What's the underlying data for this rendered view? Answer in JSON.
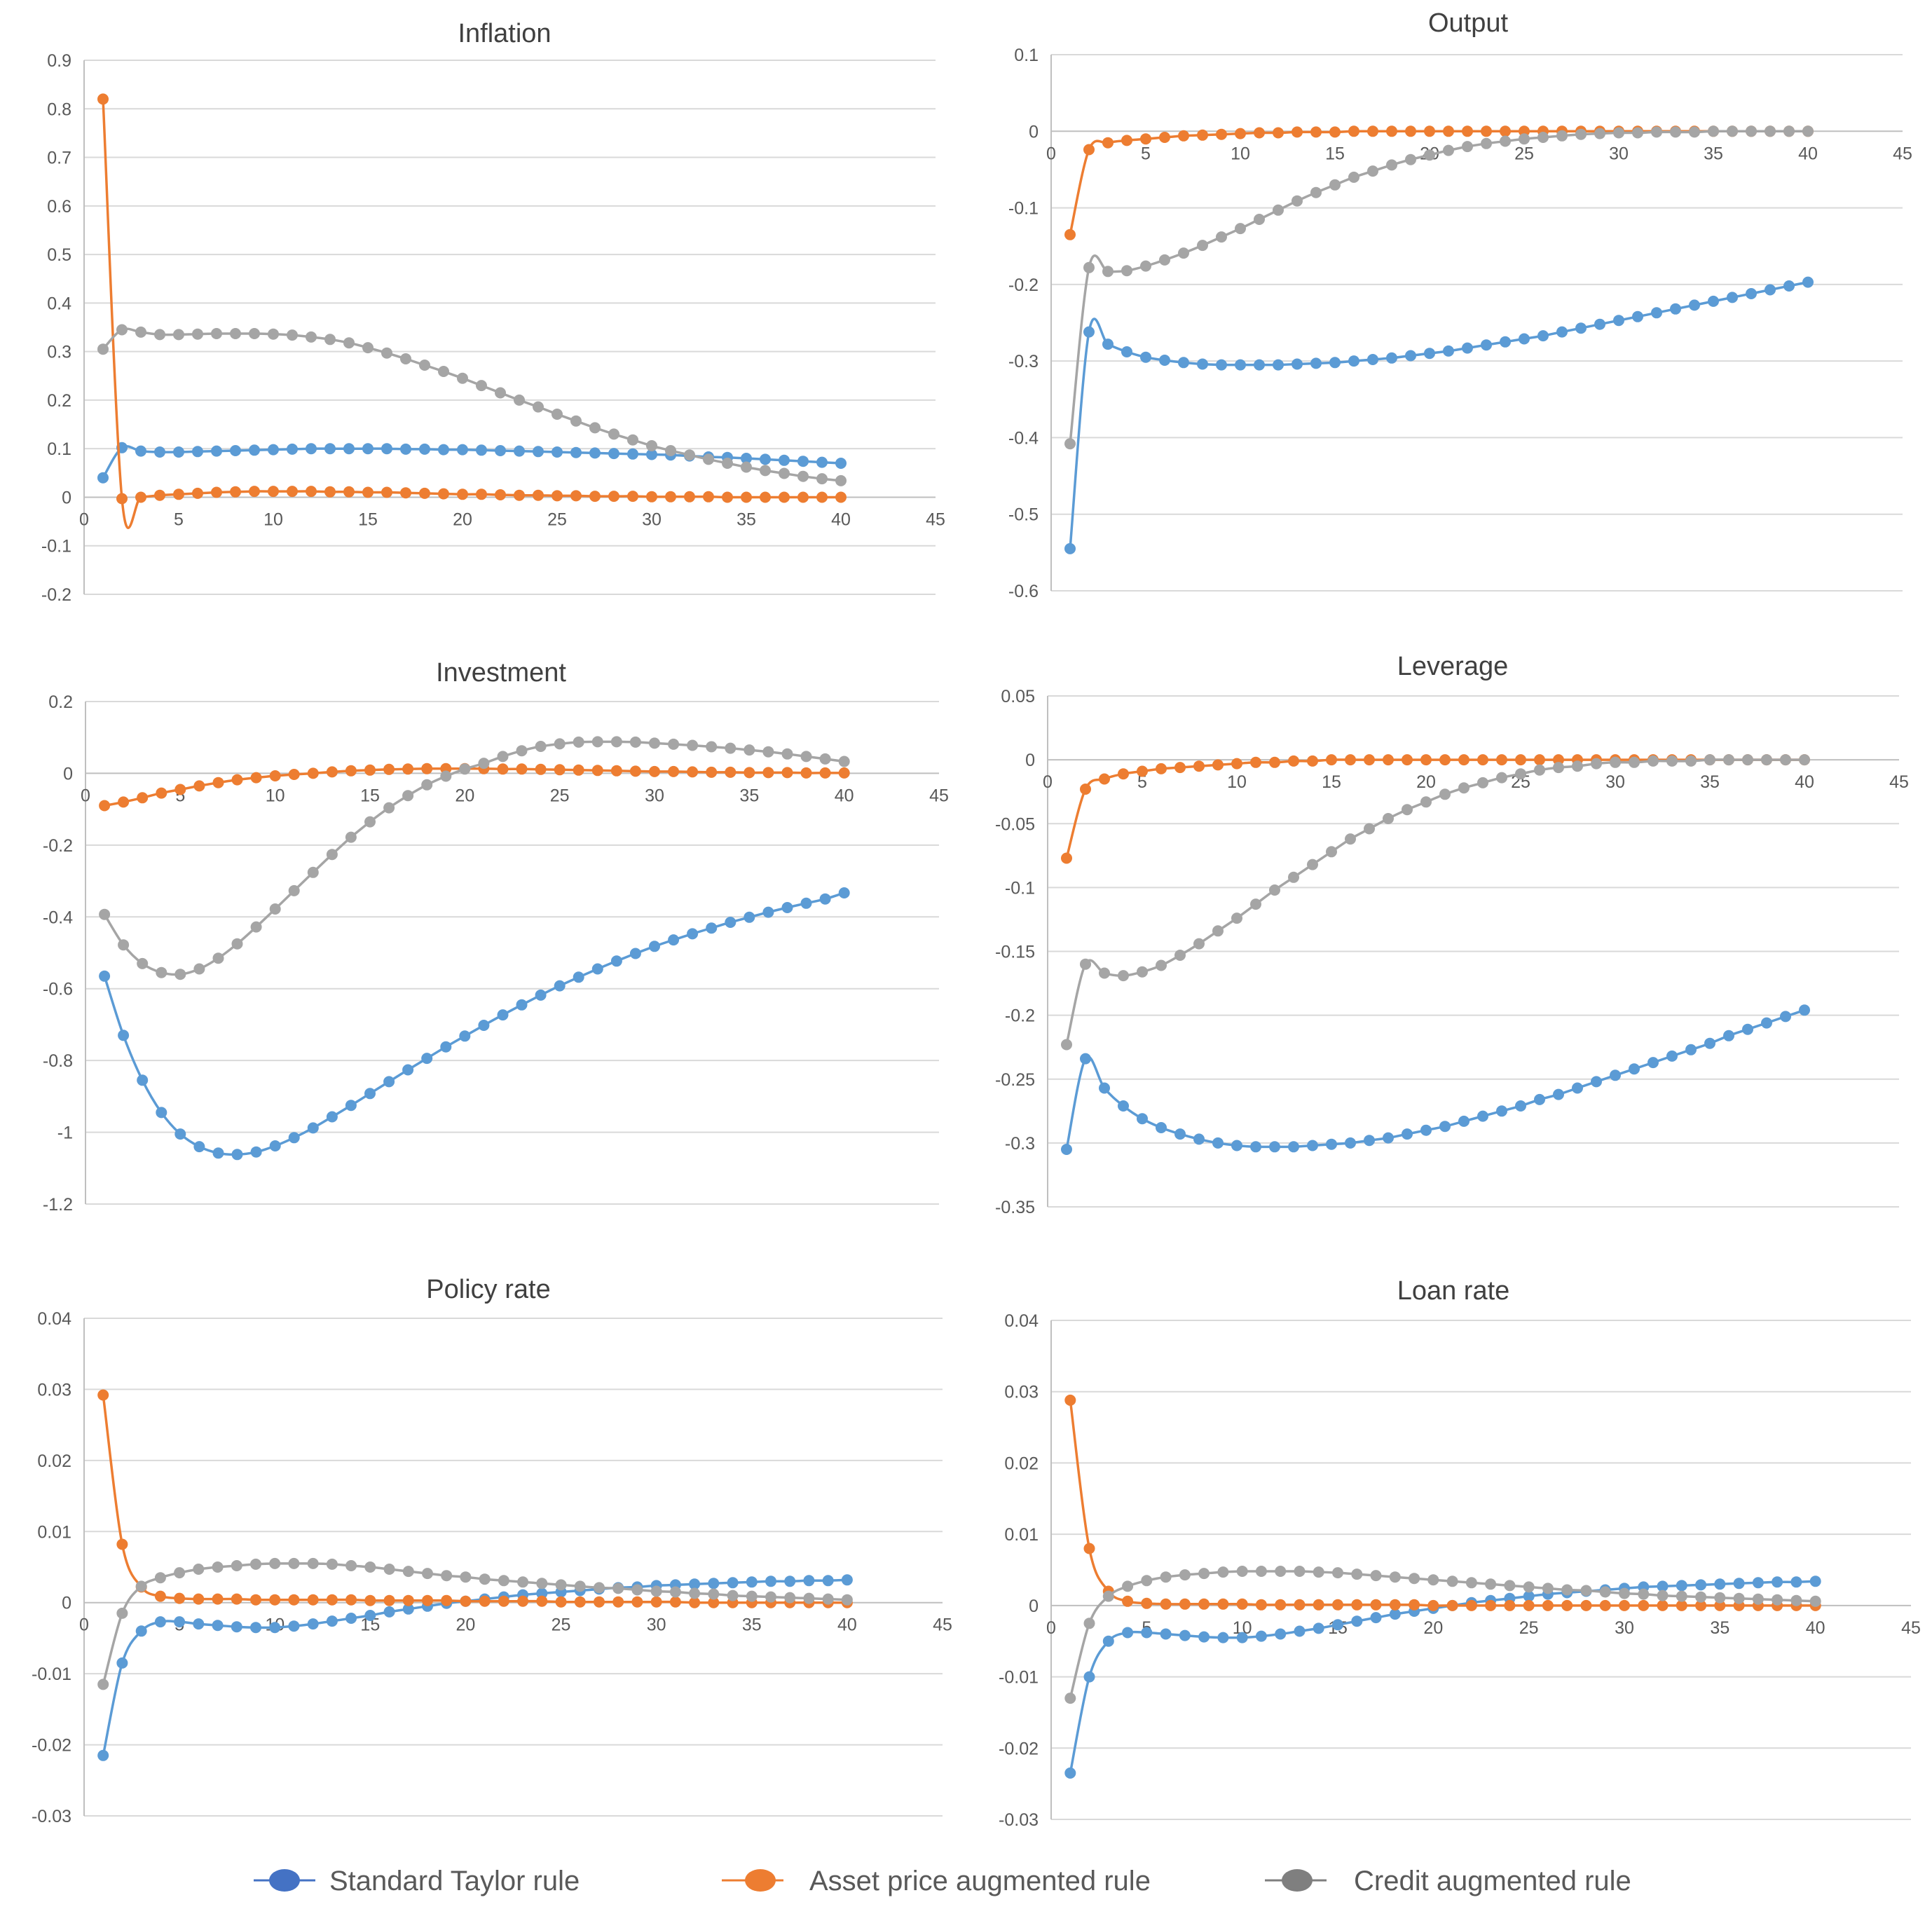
{
  "series_meta": [
    {
      "key": "taylor",
      "name": "Standard Taylor rule",
      "color": "#5b9bd5",
      "legend_color": "#4472c4"
    },
    {
      "key": "asset",
      "name": "Asset price augmented rule",
      "color": "#ed7d31",
      "legend_color": "#ed7d31"
    },
    {
      "key": "credit",
      "name": "Credit augmented rule",
      "color": "#a5a5a5",
      "legend_color": "#7f7f7f"
    }
  ],
  "chart_data": [
    {
      "type": "line",
      "title": "Inflation",
      "xlim": [
        0,
        45
      ],
      "xticks": [
        0,
        5,
        10,
        15,
        20,
        25,
        30,
        35,
        40,
        45
      ],
      "ylim": [
        -0.2,
        0.9
      ],
      "yticks": [
        -0.2,
        -0.1,
        0,
        0.1,
        0.2,
        0.3,
        0.4,
        0.5,
        0.6,
        0.7,
        0.8,
        0.9
      ],
      "ytick_labels": [
        "-0.2",
        "-0.1",
        "0",
        "0.1",
        "0.2",
        "0.3",
        "0.4",
        "0.5",
        "0.6",
        "0.7",
        "0.8",
        "0.9"
      ],
      "series": [
        {
          "name": "Standard Taylor rule",
          "values": [
            0.04,
            0.102,
            0.095,
            0.093,
            0.093,
            0.094,
            0.095,
            0.096,
            0.097,
            0.098,
            0.099,
            0.1,
            0.1,
            0.1,
            0.1,
            0.1,
            0.099,
            0.099,
            0.098,
            0.098,
            0.097,
            0.096,
            0.095,
            0.094,
            0.093,
            0.092,
            0.091,
            0.09,
            0.089,
            0.088,
            0.087,
            0.085,
            0.083,
            0.082,
            0.08,
            0.078,
            0.076,
            0.074,
            0.072,
            0.07
          ]
        },
        {
          "name": "Asset price augmented rule",
          "values": [
            0.82,
            -0.003,
            0.0,
            0.004,
            0.006,
            0.008,
            0.01,
            0.011,
            0.012,
            0.012,
            0.012,
            0.012,
            0.011,
            0.011,
            0.01,
            0.01,
            0.009,
            0.008,
            0.007,
            0.006,
            0.006,
            0.005,
            0.004,
            0.004,
            0.003,
            0.003,
            0.002,
            0.002,
            0.002,
            0.001,
            0.001,
            0.001,
            0.001,
            0.0,
            0.0,
            0.0,
            0.0,
            0.0,
            0.0,
            0.0
          ]
        },
        {
          "name": "Credit augmented rule",
          "values": [
            0.305,
            0.345,
            0.34,
            0.335,
            0.335,
            0.336,
            0.337,
            0.337,
            0.337,
            0.336,
            0.334,
            0.33,
            0.325,
            0.318,
            0.308,
            0.297,
            0.285,
            0.272,
            0.259,
            0.245,
            0.23,
            0.215,
            0.2,
            0.186,
            0.171,
            0.157,
            0.143,
            0.13,
            0.118,
            0.106,
            0.096,
            0.087,
            0.078,
            0.07,
            0.062,
            0.055,
            0.049,
            0.043,
            0.038,
            0.034
          ]
        }
      ]
    },
    {
      "type": "line",
      "title": "Output",
      "xlim": [
        0,
        45
      ],
      "xticks": [
        0,
        5,
        10,
        15,
        20,
        25,
        30,
        35,
        40,
        45
      ],
      "ylim": [
        -0.6,
        0.1
      ],
      "yticks": [
        -0.6,
        -0.5,
        -0.4,
        -0.3,
        -0.2,
        -0.1,
        0,
        0.1
      ],
      "ytick_labels": [
        "-0.6",
        "-0.5",
        "-0.4",
        "-0.3",
        "-0.2",
        "-0.1",
        "0",
        "0.1"
      ],
      "series": [
        {
          "name": "Standard Taylor rule",
          "values": [
            -0.545,
            -0.262,
            -0.278,
            -0.288,
            -0.295,
            -0.299,
            -0.302,
            -0.304,
            -0.305,
            -0.305,
            -0.305,
            -0.305,
            -0.304,
            -0.303,
            -0.302,
            -0.3,
            -0.298,
            -0.296,
            -0.293,
            -0.29,
            -0.287,
            -0.283,
            -0.279,
            -0.275,
            -0.271,
            -0.267,
            -0.262,
            -0.257,
            -0.252,
            -0.247,
            -0.242,
            -0.237,
            -0.232,
            -0.227,
            -0.222,
            -0.217,
            -0.212,
            -0.207,
            -0.202,
            -0.197
          ]
        },
        {
          "name": "Asset price augmented rule",
          "values": [
            -0.135,
            -0.024,
            -0.015,
            -0.012,
            -0.01,
            -0.008,
            -0.006,
            -0.005,
            -0.004,
            -0.003,
            -0.002,
            -0.002,
            -0.001,
            -0.001,
            -0.001,
            0.0,
            0.0,
            0.0,
            0.0,
            0.0,
            0.0,
            0.0,
            0.0,
            0.0,
            0.0,
            0.0,
            0.0,
            0.0,
            0.0,
            0.0,
            0.0,
            0.0,
            0.0,
            0.0,
            0.0,
            0.0,
            0.0,
            0.0,
            0.0,
            0.0
          ]
        },
        {
          "name": "Credit augmented rule",
          "values": [
            -0.408,
            -0.178,
            -0.183,
            -0.182,
            -0.176,
            -0.168,
            -0.159,
            -0.149,
            -0.138,
            -0.127,
            -0.115,
            -0.103,
            -0.091,
            -0.08,
            -0.07,
            -0.06,
            -0.052,
            -0.044,
            -0.037,
            -0.031,
            -0.025,
            -0.02,
            -0.016,
            -0.013,
            -0.01,
            -0.008,
            -0.006,
            -0.004,
            -0.003,
            -0.002,
            -0.002,
            -0.001,
            -0.001,
            -0.001,
            0.0,
            0.0,
            0.0,
            0.0,
            0.0,
            0.0
          ]
        }
      ]
    },
    {
      "type": "line",
      "title": "Investment",
      "xlim": [
        0,
        45
      ],
      "xticks": [
        0,
        5,
        10,
        15,
        20,
        25,
        30,
        35,
        40,
        45
      ],
      "ylim": [
        -1.2,
        0.2
      ],
      "yticks": [
        -1.2,
        -1,
        -0.8,
        -0.6,
        -0.4,
        -0.2,
        0,
        0.2
      ],
      "ytick_labels": [
        "-1.2",
        "-1",
        "-0.8",
        "-0.6",
        "-0.4",
        "-0.2",
        "0",
        "0.2"
      ],
      "series": [
        {
          "name": "Standard Taylor rule",
          "values": [
            -0.565,
            -0.73,
            -0.855,
            -0.945,
            -1.005,
            -1.04,
            -1.058,
            -1.062,
            -1.055,
            -1.038,
            -1.015,
            -0.988,
            -0.957,
            -0.925,
            -0.892,
            -0.859,
            -0.826,
            -0.794,
            -0.762,
            -0.732,
            -0.702,
            -0.673,
            -0.645,
            -0.618,
            -0.592,
            -0.568,
            -0.545,
            -0.523,
            -0.502,
            -0.482,
            -0.464,
            -0.447,
            -0.431,
            -0.415,
            -0.401,
            -0.387,
            -0.374,
            -0.362,
            -0.35,
            -0.333
          ]
        },
        {
          "name": "Asset price augmented rule",
          "values": [
            -0.09,
            -0.08,
            -0.068,
            -0.055,
            -0.045,
            -0.035,
            -0.026,
            -0.018,
            -0.012,
            -0.007,
            -0.003,
            0.0,
            0.004,
            0.007,
            0.009,
            0.011,
            0.012,
            0.013,
            0.013,
            0.013,
            0.013,
            0.012,
            0.012,
            0.011,
            0.01,
            0.009,
            0.008,
            0.007,
            0.006,
            0.005,
            0.005,
            0.004,
            0.003,
            0.003,
            0.002,
            0.002,
            0.002,
            0.001,
            0.001,
            0.001
          ]
        },
        {
          "name": "Credit augmented rule",
          "values": [
            -0.393,
            -0.478,
            -0.53,
            -0.555,
            -0.56,
            -0.545,
            -0.515,
            -0.475,
            -0.428,
            -0.378,
            -0.327,
            -0.276,
            -0.226,
            -0.178,
            -0.135,
            -0.096,
            -0.062,
            -0.032,
            -0.008,
            0.012,
            0.028,
            0.047,
            0.063,
            0.075,
            0.082,
            0.087,
            0.088,
            0.088,
            0.087,
            0.084,
            0.081,
            0.078,
            0.074,
            0.07,
            0.065,
            0.06,
            0.054,
            0.047,
            0.04,
            0.033
          ]
        }
      ]
    },
    {
      "type": "line",
      "title": "Leverage",
      "xlim": [
        0,
        45
      ],
      "xticks": [
        0,
        5,
        10,
        15,
        20,
        25,
        30,
        35,
        40,
        45
      ],
      "ylim": [
        -0.35,
        0.05
      ],
      "yticks": [
        -0.35,
        -0.3,
        -0.25,
        -0.2,
        -0.15,
        -0.1,
        -0.05,
        0,
        0.05
      ],
      "ytick_labels": [
        "-0.35",
        "-0.3",
        "-0.25",
        "-0.2",
        "-0.15",
        "-0.1",
        "-0.05",
        "0",
        "0.05"
      ],
      "series": [
        {
          "name": "Standard Taylor rule",
          "values": [
            -0.305,
            -0.234,
            -0.257,
            -0.271,
            -0.281,
            -0.288,
            -0.293,
            -0.297,
            -0.3,
            -0.302,
            -0.303,
            -0.303,
            -0.303,
            -0.302,
            -0.301,
            -0.3,
            -0.298,
            -0.296,
            -0.293,
            -0.29,
            -0.287,
            -0.283,
            -0.279,
            -0.275,
            -0.271,
            -0.266,
            -0.262,
            -0.257,
            -0.252,
            -0.247,
            -0.242,
            -0.237,
            -0.232,
            -0.227,
            -0.222,
            -0.216,
            -0.211,
            -0.206,
            -0.201,
            -0.196
          ]
        },
        {
          "name": "Asset price augmented rule",
          "values": [
            -0.077,
            -0.023,
            -0.015,
            -0.011,
            -0.009,
            -0.007,
            -0.006,
            -0.005,
            -0.004,
            -0.003,
            -0.002,
            -0.002,
            -0.001,
            -0.001,
            0.0,
            0.0,
            0.0,
            0.0,
            0.0,
            0.0,
            0.0,
            0.0,
            0.0,
            0.0,
            0.0,
            0.0,
            0.0,
            0.0,
            0.0,
            0.0,
            0.0,
            0.0,
            0.0,
            0.0,
            0.0,
            0.0,
            0.0,
            0.0,
            0.0,
            0.0
          ]
        },
        {
          "name": "Credit augmented rule",
          "values": [
            -0.223,
            -0.16,
            -0.167,
            -0.169,
            -0.166,
            -0.161,
            -0.153,
            -0.144,
            -0.134,
            -0.124,
            -0.113,
            -0.102,
            -0.092,
            -0.082,
            -0.072,
            -0.062,
            -0.054,
            -0.046,
            -0.039,
            -0.033,
            -0.027,
            -0.022,
            -0.018,
            -0.014,
            -0.011,
            -0.008,
            -0.006,
            -0.005,
            -0.003,
            -0.002,
            -0.002,
            -0.001,
            -0.001,
            -0.001,
            0.0,
            0.0,
            0.0,
            0.0,
            0.0,
            0.0
          ]
        }
      ]
    },
    {
      "type": "line",
      "title": "Policy rate",
      "xlim": [
        0,
        45
      ],
      "xticks": [
        0,
        5,
        10,
        15,
        20,
        25,
        30,
        35,
        40,
        45
      ],
      "ylim": [
        -0.03,
        0.04
      ],
      "yticks": [
        -0.03,
        -0.02,
        -0.01,
        0,
        0.01,
        0.02,
        0.03,
        0.04
      ],
      "ytick_labels": [
        "-0.03",
        "-0.02",
        "-0.01",
        "0",
        "0.01",
        "0.02",
        "0.03",
        "0.04"
      ],
      "series": [
        {
          "name": "Standard Taylor rule",
          "values": [
            -0.0215,
            -0.0085,
            -0.004,
            -0.0027,
            -0.0027,
            -0.003,
            -0.0032,
            -0.0034,
            -0.0035,
            -0.0035,
            -0.0033,
            -0.003,
            -0.0026,
            -0.0022,
            -0.0018,
            -0.0013,
            -0.0009,
            -0.0005,
            -0.0001,
            0.0002,
            0.0005,
            0.0008,
            0.0011,
            0.0013,
            0.0015,
            0.0017,
            0.0019,
            0.0021,
            0.0022,
            0.0024,
            0.0025,
            0.0026,
            0.0027,
            0.0028,
            0.0029,
            0.003,
            0.003,
            0.0031,
            0.0031,
            0.0032
          ]
        },
        {
          "name": "Asset price augmented rule",
          "values": [
            0.0292,
            0.0082,
            0.0022,
            0.0009,
            0.0006,
            0.0005,
            0.0005,
            0.0005,
            0.0004,
            0.0004,
            0.0004,
            0.0004,
            0.0004,
            0.0004,
            0.0003,
            0.0003,
            0.0003,
            0.0003,
            0.0003,
            0.0002,
            0.0002,
            0.0002,
            0.0002,
            0.0002,
            0.0001,
            0.0001,
            0.0001,
            0.0001,
            0.0001,
            0.0001,
            0.0001,
            0.0,
            0.0,
            0.0,
            0.0,
            0.0,
            0.0,
            0.0,
            0.0,
            0.0
          ]
        },
        {
          "name": "Credit augmented rule",
          "values": [
            -0.0115,
            -0.0015,
            0.0023,
            0.0035,
            0.0042,
            0.0047,
            0.005,
            0.0052,
            0.0054,
            0.0055,
            0.0055,
            0.0055,
            0.0054,
            0.0052,
            0.005,
            0.0047,
            0.0044,
            0.0041,
            0.0038,
            0.0036,
            0.0033,
            0.0031,
            0.0029,
            0.0027,
            0.0025,
            0.0023,
            0.0021,
            0.002,
            0.0018,
            0.0016,
            0.0015,
            0.0013,
            0.0012,
            0.001,
            0.0009,
            0.0008,
            0.0007,
            0.0006,
            0.0005,
            0.0004
          ]
        }
      ]
    },
    {
      "type": "line",
      "title": "Loan rate",
      "xlim": [
        0,
        45
      ],
      "xticks": [
        0,
        5,
        10,
        15,
        20,
        25,
        30,
        35,
        40,
        45
      ],
      "ylim": [
        -0.03,
        0.04
      ],
      "yticks": [
        -0.03,
        -0.02,
        -0.01,
        0,
        0.01,
        0.02,
        0.03,
        0.04
      ],
      "ytick_labels": [
        "-0.03",
        "-0.02",
        "-0.01",
        "0",
        "0.01",
        "0.02",
        "0.03",
        "0.04"
      ],
      "series": [
        {
          "name": "Standard Taylor rule",
          "values": [
            -0.0235,
            -0.01,
            -0.005,
            -0.0038,
            -0.0038,
            -0.004,
            -0.0042,
            -0.0044,
            -0.0045,
            -0.0045,
            -0.0043,
            -0.004,
            -0.0036,
            -0.0032,
            -0.0027,
            -0.0022,
            -0.0017,
            -0.0012,
            -0.0008,
            -0.0004,
            0.0,
            0.0004,
            0.0007,
            0.001,
            0.0013,
            0.0016,
            0.0018,
            0.002,
            0.0022,
            0.0024,
            0.0026,
            0.0027,
            0.0028,
            0.0029,
            0.003,
            0.0031,
            0.0032,
            0.0033,
            0.0033,
            0.0034
          ]
        },
        {
          "name": "Asset price augmented rule",
          "values": [
            0.0288,
            0.008,
            0.002,
            0.0006,
            0.0003,
            0.0002,
            0.0002,
            0.0002,
            0.0002,
            0.0002,
            0.0001,
            0.0001,
            0.0001,
            0.0001,
            0.0001,
            0.0001,
            0.0001,
            0.0001,
            0.0001,
            0.0,
            0.0,
            0.0,
            0.0,
            0.0,
            0.0,
            0.0,
            0.0,
            0.0,
            0.0,
            0.0,
            0.0,
            0.0,
            0.0,
            0.0,
            0.0,
            0.0,
            0.0,
            0.0,
            0.0,
            0.0
          ]
        },
        {
          "name": "Credit augmented rule",
          "values": [
            -0.013,
            -0.0025,
            0.0013,
            0.0027,
            0.0035,
            0.004,
            0.0043,
            0.0045,
            0.0047,
            0.0048,
            0.0048,
            0.0048,
            0.0048,
            0.0047,
            0.0046,
            0.0044,
            0.0042,
            0.004,
            0.0038,
            0.0036,
            0.0034,
            0.0032,
            0.003,
            0.0028,
            0.0026,
            0.0024,
            0.0022,
            0.0021,
            0.0019,
            0.0017,
            0.0016,
            0.0014,
            0.0013,
            0.0012,
            0.0011,
            0.001,
            0.0009,
            0.0008,
            0.0007,
            0.0006
          ]
        }
      ]
    }
  ]
}
